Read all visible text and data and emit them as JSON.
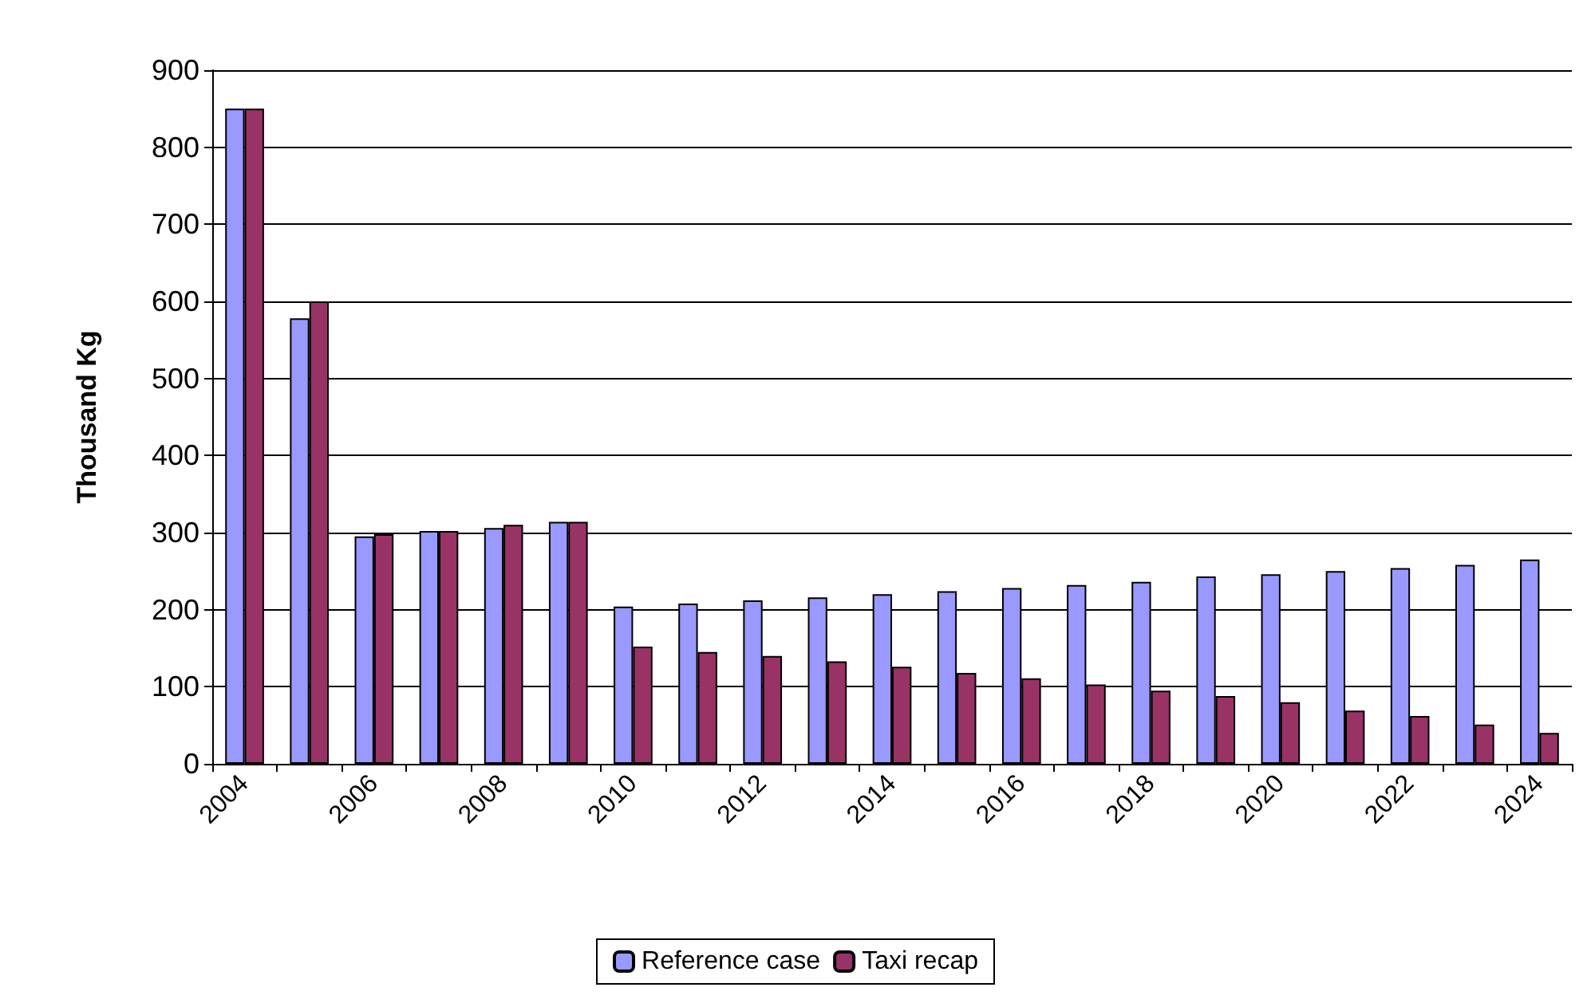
{
  "chart_data": {
    "type": "bar",
    "ylabel": "Thousand Kg",
    "categories": [
      "2004",
      null,
      "2006",
      null,
      "2008",
      null,
      "2010",
      null,
      "2012",
      null,
      "2014",
      null,
      "2016",
      null,
      "2018",
      null,
      "2020",
      null,
      "2022",
      null,
      "2024"
    ],
    "series": [
      {
        "name": "Reference case",
        "color": "#9999ff",
        "values": [
          850,
          578,
          295,
          302,
          306,
          314,
          204,
          208,
          212,
          216,
          220,
          224,
          228,
          232,
          236,
          243,
          246,
          250,
          254,
          258,
          265
        ]
      },
      {
        "name": "Taxi recap",
        "color": "#993366",
        "values": [
          850,
          600,
          298,
          302,
          310,
          314,
          152,
          145,
          140,
          133,
          126,
          118,
          111,
          103,
          95,
          88,
          80,
          69,
          62,
          51,
          40
        ]
      }
    ],
    "ylim": [
      0,
      900
    ],
    "yticks": [
      0,
      100,
      200,
      300,
      400,
      500,
      600,
      700,
      800,
      900
    ],
    "grid": "y",
    "legend": "bottom"
  }
}
